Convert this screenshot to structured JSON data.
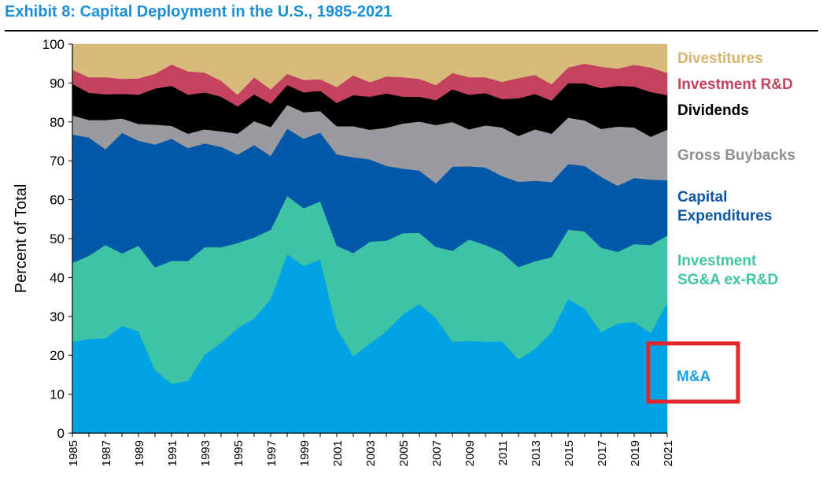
{
  "title": "Exhibit 8: Capital Deployment in the U.S., 1985-2021",
  "chart_data": {
    "type": "area",
    "stacked": true,
    "xlabel": "",
    "ylabel": "Percent of Total",
    "ylim": [
      0,
      100
    ],
    "yticks": [
      0,
      10,
      20,
      30,
      40,
      50,
      60,
      70,
      80,
      90,
      100
    ],
    "xticks": [
      1985,
      1987,
      1989,
      1991,
      1993,
      1995,
      1997,
      1999,
      2001,
      2003,
      2005,
      2007,
      2009,
      2011,
      2013,
      2015,
      2017,
      2019,
      2021
    ],
    "x": [
      1985,
      1986,
      1987,
      1988,
      1989,
      1990,
      1991,
      1992,
      1993,
      1994,
      1995,
      1996,
      1997,
      1998,
      1999,
      2000,
      2001,
      2002,
      2003,
      2004,
      2005,
      2006,
      2007,
      2008,
      2009,
      2010,
      2011,
      2012,
      2013,
      2014,
      2015,
      2016,
      2017,
      2018,
      2019,
      2020,
      2021
    ],
    "series": [
      {
        "name": "M&A",
        "color": "#00a3e6",
        "values": [
          23.5,
          24.2,
          24.4,
          27.6,
          26.2,
          16.3,
          12.7,
          13.5,
          20.2,
          23.2,
          27.0,
          29.5,
          34.5,
          46.0,
          43.0,
          44.6,
          27.0,
          19.8,
          23.0,
          26.2,
          30.6,
          33.2,
          29.6,
          23.5,
          23.8,
          23.5,
          23.7,
          18.9,
          21.7,
          26.0,
          34.5,
          32.0,
          26.0,
          28.2,
          28.6,
          25.8,
          33.5
        ]
      },
      {
        "name": "Investment SG&A ex-R&D",
        "color": "#3ec4a4",
        "values": [
          20.3,
          21.4,
          24.0,
          18.6,
          22.0,
          26.3,
          31.6,
          30.8,
          27.6,
          24.6,
          21.9,
          20.8,
          17.8,
          15.0,
          14.8,
          15.0,
          21.2,
          26.5,
          26.2,
          23.3,
          20.8,
          18.3,
          18.3,
          23.4,
          26.0,
          24.9,
          22.8,
          23.8,
          22.5,
          19.3,
          17.8,
          19.9,
          21.7,
          18.4,
          20.0,
          22.6,
          17.3
        ]
      },
      {
        "name": "Capital Expenditures",
        "color": "#0358a8",
        "values": [
          33.0,
          30.4,
          24.6,
          31.0,
          27.0,
          31.6,
          31.4,
          29.0,
          26.7,
          25.8,
          22.7,
          23.8,
          19.0,
          17.3,
          17.9,
          17.7,
          23.5,
          24.6,
          21.2,
          19.2,
          16.6,
          16.0,
          16.3,
          21.6,
          18.8,
          19.9,
          19.6,
          21.9,
          20.7,
          19.2,
          16.9,
          16.8,
          18.2,
          17.0,
          17.0,
          16.8,
          14.2
        ]
      },
      {
        "name": "Gross Buybacks",
        "color": "#9a9b9f",
        "values": [
          4.9,
          4.5,
          7.5,
          3.7,
          4.3,
          5.1,
          3.3,
          3.7,
          3.6,
          4.0,
          5.4,
          6.1,
          7.4,
          6.1,
          6.8,
          5.5,
          7.2,
          8.0,
          7.6,
          9.8,
          11.6,
          12.6,
          15.0,
          11.5,
          9.5,
          10.8,
          12.5,
          11.8,
          13.2,
          12.5,
          11.9,
          11.7,
          12.3,
          15.2,
          13.0,
          11.0,
          13.0
        ]
      },
      {
        "name": "Dividends",
        "color": "#000000",
        "values": [
          8.1,
          7.0,
          6.6,
          6.3,
          7.5,
          9.3,
          10.3,
          10.0,
          9.5,
          8.9,
          7.0,
          6.9,
          6.0,
          5.1,
          5.1,
          5.2,
          6.0,
          8.0,
          8.5,
          8.8,
          6.9,
          6.4,
          6.4,
          8.4,
          8.9,
          8.3,
          7.3,
          9.7,
          9.1,
          8.5,
          8.9,
          9.5,
          10.5,
          10.5,
          10.5,
          11.5,
          8.9
        ]
      },
      {
        "name": "Investment R&D",
        "color": "#c3425e",
        "values": [
          3.6,
          4.0,
          4.4,
          3.9,
          4.2,
          3.8,
          5.5,
          6.0,
          5.1,
          4.1,
          3.0,
          4.4,
          3.7,
          2.9,
          3.2,
          3.0,
          4.1,
          5.1,
          3.7,
          4.4,
          5.0,
          4.6,
          3.9,
          4.2,
          4.5,
          4.1,
          4.4,
          5.2,
          4.9,
          4.2,
          4.0,
          5.1,
          5.5,
          4.4,
          5.6,
          6.3,
          5.7
        ]
      },
      {
        "name": "Divestitures",
        "color": "#d8bb7b",
        "values": [
          6.6,
          8.5,
          8.5,
          8.9,
          8.8,
          7.6,
          5.2,
          7.0,
          7.3,
          9.4,
          13.0,
          8.5,
          11.6,
          7.6,
          9.2,
          9.0,
          11.0,
          8.0,
          9.8,
          8.3,
          8.5,
          8.9,
          10.5,
          7.4,
          8.5,
          8.5,
          9.7,
          8.7,
          7.9,
          10.3,
          6.0,
          5.0,
          5.8,
          6.3,
          5.3,
          6.0,
          7.4
        ]
      }
    ],
    "legend_order": [
      "Divestitures",
      "Investment R&D",
      "Dividends",
      "Gross Buybacks",
      "Capital Expenditures",
      "Investment SG&A ex-R&D",
      "M&A"
    ],
    "legend_labels": {
      "Divestitures": [
        "Divestitures"
      ],
      "Investment R&D": [
        "Investment R&D"
      ],
      "Dividends": [
        "Dividends"
      ],
      "Gross Buybacks": [
        "Gross Buybacks"
      ],
      "Capital Expenditures": [
        "Capital",
        "Expenditures"
      ],
      "Investment SG&A ex-R&D": [
        "Investment",
        "SG&A ex-R&D"
      ],
      "M&A": [
        "M&A"
      ]
    },
    "legend_colors": {
      "Divestitures": "#d6b56e",
      "Investment R&D": "#c3425e",
      "Dividends": "#000000",
      "Gross Buybacks": "#8f9095",
      "Capital Expenditures": "#0a56a3",
      "Investment SG&A ex-R&D": "#3ec4a4",
      "M&A": "#1a9fe0"
    },
    "legend_placement": "right",
    "highlight": {
      "target": "M&A",
      "color": "#e4262b"
    }
  }
}
